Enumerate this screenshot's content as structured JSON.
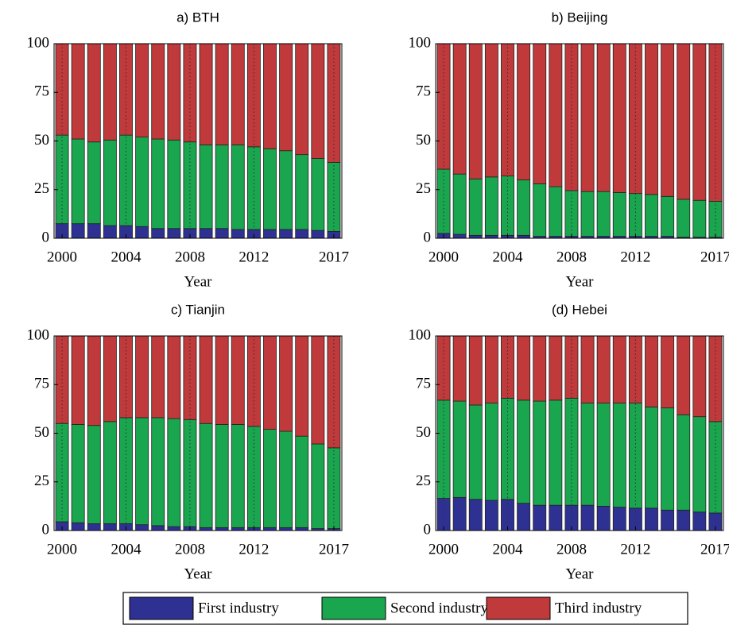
{
  "chart_data": [
    {
      "type": "bar",
      "stacked": true,
      "title": "a) BTH",
      "xlabel": "Year",
      "categories": [
        "2000",
        null,
        null,
        null,
        "2004",
        null,
        null,
        null,
        "2008",
        null,
        null,
        null,
        "2012",
        null,
        null,
        null,
        null,
        "2017"
      ],
      "series": [
        {
          "name": "First industry",
          "color": "#2e3192",
          "values": [
            7.5,
            7.5,
            7.5,
            6.5,
            6.5,
            6,
            5,
            5,
            5,
            5,
            5,
            4.5,
            4.5,
            4.5,
            4.5,
            4.5,
            4,
            3.5
          ]
        },
        {
          "name": "Second industry",
          "color": "#1aa54f",
          "values": [
            45.5,
            43.5,
            42,
            44,
            46.5,
            46,
            46,
            45.5,
            44.5,
            43,
            43,
            43.5,
            42.5,
            41.5,
            40.5,
            38.5,
            37,
            35.5
          ]
        },
        {
          "name": "Third industry",
          "color": "#c0393b",
          "values": [
            47,
            49,
            50.5,
            49.5,
            47,
            48,
            49,
            49.5,
            50.5,
            52,
            52,
            52,
            53,
            54,
            55,
            57,
            59,
            61
          ]
        }
      ],
      "ylim": [
        0,
        100
      ],
      "yticks": [
        0,
        25,
        50,
        75,
        100
      ],
      "grid": true
    },
    {
      "type": "bar",
      "stacked": true,
      "title": "b) Beijing",
      "xlabel": "Year",
      "categories": [
        "2000",
        null,
        null,
        null,
        "2004",
        null,
        null,
        null,
        "2008",
        null,
        null,
        null,
        "2012",
        null,
        null,
        null,
        null,
        "2017"
      ],
      "series": [
        {
          "color": "#2e3192",
          "values": [
            2.5,
            2,
            1.5,
            1.5,
            1.5,
            1.5,
            1,
            1,
            1,
            1,
            1,
            1,
            1,
            1,
            1,
            0.5,
            0.5,
            0.5
          ]
        },
        {
          "color": "#1aa54f",
          "values": [
            33,
            31,
            29,
            30,
            30.5,
            28.5,
            27,
            25.5,
            23.5,
            23,
            23,
            22.5,
            22,
            21.5,
            20.5,
            19.5,
            19,
            18.5
          ]
        },
        {
          "color": "#c0393b",
          "values": [
            64.5,
            67,
            69.5,
            68.5,
            68,
            70,
            72,
            73.5,
            75.5,
            76,
            76,
            76.5,
            77,
            77.5,
            78.5,
            80,
            80.5,
            81
          ]
        }
      ],
      "ylim": [
        0,
        100
      ],
      "yticks": [
        0,
        25,
        50,
        75,
        100
      ],
      "grid": true
    },
    {
      "type": "bar",
      "stacked": true,
      "title": "c) Tianjin",
      "xlabel": "Year",
      "categories": [
        "2000",
        null,
        null,
        null,
        "2004",
        null,
        null,
        null,
        "2008",
        null,
        null,
        null,
        "2012",
        null,
        null,
        null,
        null,
        "2017"
      ],
      "series": [
        {
          "color": "#2e3192",
          "values": [
            4.5,
            4,
            3.5,
            3.5,
            3.5,
            3,
            2.5,
            2,
            2,
            1.5,
            1.5,
            1.5,
            1.5,
            1.5,
            1.5,
            1.5,
            1,
            1
          ]
        },
        {
          "color": "#1aa54f",
          "values": [
            50.5,
            50.5,
            50.5,
            52.5,
            54.5,
            55,
            55.5,
            55.5,
            55,
            53.5,
            53,
            53,
            52,
            50.5,
            49.5,
            47,
            43.5,
            41.5
          ]
        },
        {
          "color": "#c0393b",
          "values": [
            45,
            45.5,
            46,
            44,
            42,
            42,
            42,
            42.5,
            43,
            45,
            45.5,
            45.5,
            46.5,
            48,
            49,
            51.5,
            55.5,
            57.5
          ]
        }
      ],
      "ylim": [
        0,
        100
      ],
      "yticks": [
        0,
        25,
        50,
        75,
        100
      ],
      "grid": true
    },
    {
      "type": "bar",
      "stacked": true,
      "title": "(d) Hebei",
      "xlabel": "Year",
      "categories": [
        "2000",
        null,
        null,
        null,
        "2004",
        null,
        null,
        null,
        "2008",
        null,
        null,
        null,
        "2012",
        null,
        null,
        null,
        null,
        "2017"
      ],
      "series": [
        {
          "color": "#2e3192",
          "values": [
            16.5,
            17,
            16,
            15.5,
            16,
            14,
            13,
            13,
            13,
            13,
            12.5,
            12,
            11.5,
            11.5,
            10.5,
            10.5,
            9.5,
            9
          ]
        },
        {
          "color": "#1aa54f",
          "values": [
            50.5,
            49.5,
            48.5,
            50,
            52,
            53,
            53.5,
            54,
            55,
            52.5,
            53,
            53.5,
            54,
            52,
            52.5,
            49,
            49,
            47
          ]
        },
        {
          "color": "#c0393b",
          "values": [
            33,
            33.5,
            35.5,
            34.5,
            32,
            33,
            33.5,
            33,
            32,
            34.5,
            34.5,
            34.5,
            34.5,
            36.5,
            37,
            40.5,
            41.5,
            44
          ]
        }
      ],
      "ylim": [
        0,
        100
      ],
      "yticks": [
        0,
        25,
        50,
        75,
        100
      ],
      "grid": true
    }
  ]
}
